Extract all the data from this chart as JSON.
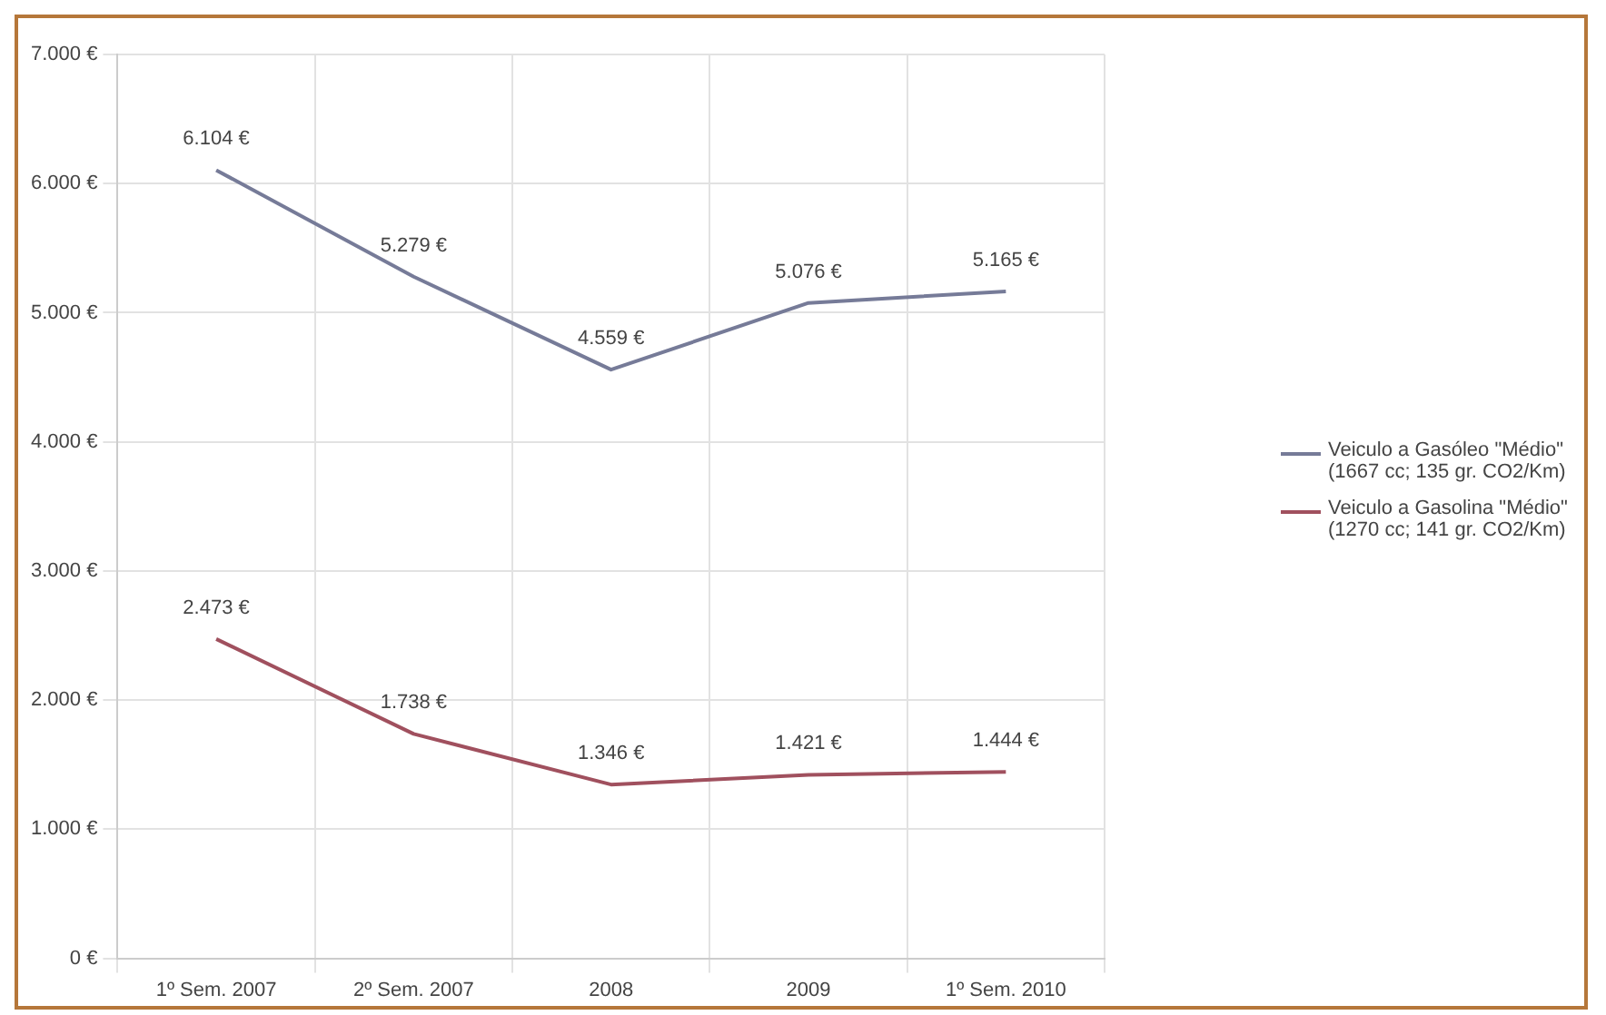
{
  "chart_data": {
    "type": "line",
    "categories": [
      "1º Sem. 2007",
      "2º Sem. 2007",
      "2008",
      "2009",
      "1º Sem. 2010"
    ],
    "series": [
      {
        "name": "Veiculo a Gasóleo \"Médio\" (1667 cc; 135 gr. CO2/Km)",
        "color": "#767b98",
        "values": [
          6104,
          5279,
          4559,
          5076,
          5165
        ],
        "value_labels": [
          "6.104 €",
          "5.279 €",
          "4.559 €",
          "5.076 €",
          "5.165 €"
        ]
      },
      {
        "name": "Veiculo a Gasolina \"Médio\" (1270 cc; 141 gr. CO2/Km)",
        "color": "#a0505e",
        "values": [
          2473,
          1738,
          1346,
          1421,
          1444
        ],
        "value_labels": [
          "2.473 €",
          "1.738 €",
          "1.346 €",
          "1.421 €",
          "1.444 €"
        ]
      }
    ],
    "ylim": [
      0,
      7000
    ],
    "yticks": [
      {
        "value": 0,
        "label": "0 €"
      },
      {
        "value": 1000,
        "label": "1.000 €"
      },
      {
        "value": 2000,
        "label": "2.000 €"
      },
      {
        "value": 3000,
        "label": "3.000 €"
      },
      {
        "value": 4000,
        "label": "4.000 €"
      },
      {
        "value": 5000,
        "label": "5.000 €"
      },
      {
        "value": 6000,
        "label": "6.000 €"
      },
      {
        "value": 7000,
        "label": "7.000 €"
      }
    ],
    "grid": true,
    "legend": "right",
    "marker": "none",
    "line_style": "solid"
  }
}
